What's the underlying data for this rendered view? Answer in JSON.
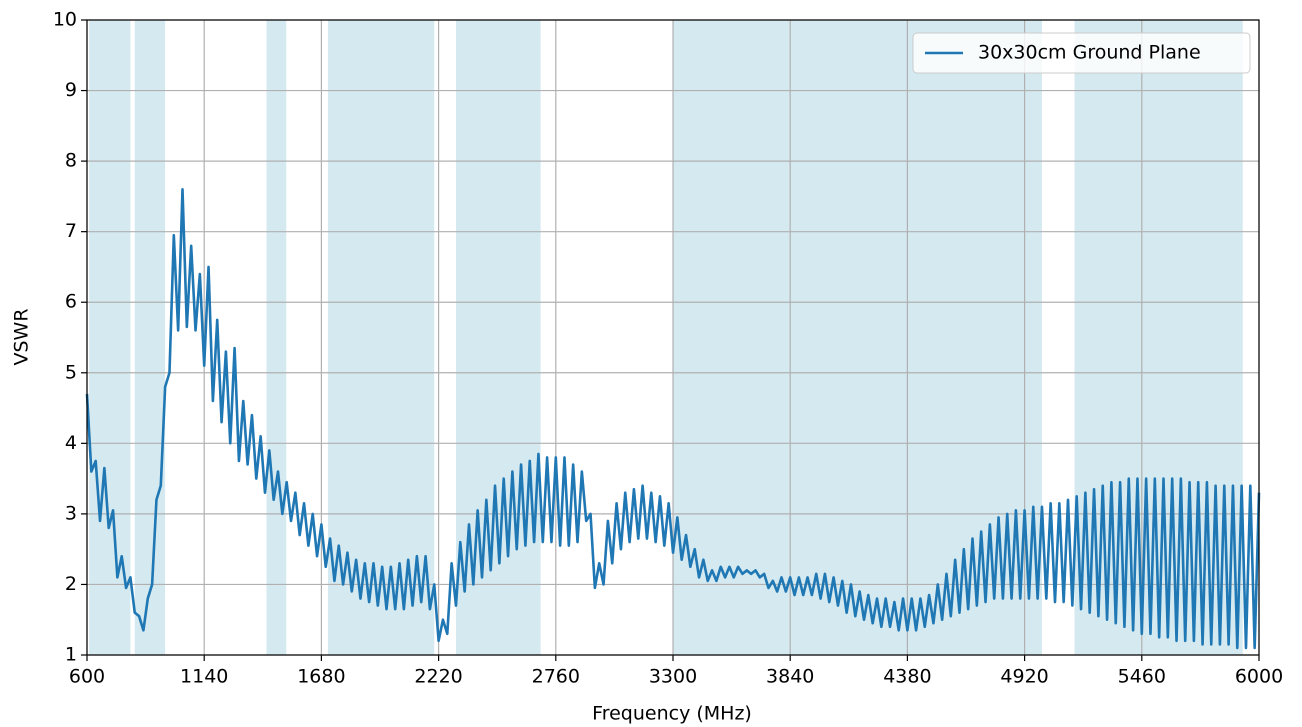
{
  "chart_data": {
    "type": "line",
    "xlabel": "Frequency (MHz)",
    "ylabel": "VSWR",
    "xlim": [
      600,
      6000
    ],
    "ylim": [
      1,
      10
    ],
    "xticks": [
      600,
      1140,
      1680,
      2220,
      2760,
      3300,
      3840,
      4380,
      4920,
      5460,
      6000
    ],
    "yticks": [
      1,
      2,
      3,
      4,
      5,
      6,
      7,
      8,
      9,
      10
    ],
    "grid": true,
    "legend": "upper right",
    "band_color": "#d4e9f0",
    "bands": [
      [
        610,
        800
      ],
      [
        820,
        960
      ],
      [
        1427,
        1518
      ],
      [
        1710,
        2200
      ],
      [
        2300,
        2690
      ],
      [
        3300,
        5000
      ],
      [
        5150,
        5925
      ]
    ],
    "x": [
      600,
      620,
      640,
      660,
      680,
      700,
      720,
      740,
      760,
      780,
      800,
      820,
      840,
      860,
      880,
      900,
      920,
      940,
      960,
      980,
      1000,
      1020,
      1040,
      1060,
      1080,
      1100,
      1120,
      1140,
      1160,
      1180,
      1200,
      1220,
      1240,
      1260,
      1280,
      1300,
      1320,
      1340,
      1360,
      1380,
      1400,
      1420,
      1440,
      1460,
      1480,
      1500,
      1520,
      1540,
      1560,
      1580,
      1600,
      1620,
      1640,
      1660,
      1680,
      1700,
      1720,
      1740,
      1760,
      1780,
      1800,
      1820,
      1840,
      1860,
      1880,
      1900,
      1920,
      1940,
      1960,
      1980,
      2000,
      2020,
      2040,
      2060,
      2080,
      2100,
      2120,
      2140,
      2160,
      2180,
      2200,
      2220,
      2240,
      2260,
      2280,
      2300,
      2320,
      2340,
      2360,
      2380,
      2400,
      2420,
      2440,
      2460,
      2480,
      2500,
      2520,
      2540,
      2560,
      2580,
      2600,
      2620,
      2640,
      2660,
      2680,
      2700,
      2720,
      2740,
      2760,
      2780,
      2800,
      2820,
      2840,
      2860,
      2880,
      2900,
      2920,
      2940,
      2960,
      2980,
      3000,
      3020,
      3040,
      3060,
      3080,
      3100,
      3120,
      3140,
      3160,
      3180,
      3200,
      3220,
      3240,
      3260,
      3280,
      3300,
      3320,
      3340,
      3360,
      3380,
      3400,
      3420,
      3440,
      3460,
      3480,
      3500,
      3520,
      3540,
      3560,
      3580,
      3600,
      3620,
      3640,
      3660,
      3680,
      3700,
      3720,
      3740,
      3760,
      3780,
      3800,
      3820,
      3840,
      3860,
      3880,
      3900,
      3920,
      3940,
      3960,
      3980,
      4000,
      4020,
      4040,
      4060,
      4080,
      4100,
      4120,
      4140,
      4160,
      4180,
      4200,
      4220,
      4240,
      4260,
      4280,
      4300,
      4320,
      4340,
      4360,
      4380,
      4400,
      4420,
      4440,
      4460,
      4480,
      4500,
      4520,
      4540,
      4560,
      4580,
      4600,
      4620,
      4640,
      4660,
      4680,
      4700,
      4720,
      4740,
      4760,
      4780,
      4800,
      4820,
      4840,
      4860,
      4880,
      4900,
      4920,
      4940,
      4960,
      4980,
      5000,
      5020,
      5040,
      5060,
      5080,
      5100,
      5120,
      5140,
      5160,
      5180,
      5200,
      5220,
      5240,
      5260,
      5280,
      5300,
      5320,
      5340,
      5360,
      5380,
      5400,
      5420,
      5440,
      5460,
      5480,
      5500,
      5520,
      5540,
      5560,
      5580,
      5600,
      5620,
      5640,
      5660,
      5680,
      5700,
      5720,
      5740,
      5760,
      5780,
      5800,
      5820,
      5840,
      5860,
      5880,
      5900,
      5920,
      5940,
      5960,
      5980,
      6000
    ],
    "series": [
      {
        "name": "30x30cm Ground Plane",
        "color": "#1f77b4",
        "values": [
          4.7,
          3.6,
          3.75,
          2.9,
          3.65,
          2.8,
          3.05,
          2.1,
          2.4,
          1.95,
          2.1,
          1.6,
          1.55,
          1.35,
          1.8,
          2.0,
          3.2,
          3.4,
          4.8,
          5.0,
          6.95,
          5.6,
          7.6,
          5.65,
          6.8,
          5.6,
          6.4,
          5.1,
          6.5,
          4.6,
          5.75,
          4.3,
          5.3,
          4.0,
          5.35,
          3.75,
          4.6,
          3.7,
          4.4,
          3.5,
          4.1,
          3.3,
          3.9,
          3.2,
          3.6,
          3.0,
          3.45,
          2.9,
          3.3,
          2.7,
          3.15,
          2.55,
          3.0,
          2.4,
          2.85,
          2.25,
          2.65,
          2.05,
          2.55,
          2.0,
          2.45,
          1.9,
          2.35,
          1.8,
          2.3,
          1.75,
          2.3,
          1.7,
          2.25,
          1.65,
          2.25,
          1.65,
          2.3,
          1.65,
          2.35,
          1.7,
          2.4,
          1.75,
          2.4,
          1.65,
          2.0,
          1.2,
          1.5,
          1.3,
          2.3,
          1.7,
          2.6,
          1.9,
          2.85,
          2.0,
          3.05,
          2.1,
          3.2,
          2.2,
          3.4,
          2.3,
          3.5,
          2.4,
          3.6,
          2.5,
          3.7,
          2.55,
          3.75,
          2.6,
          3.85,
          2.6,
          3.8,
          2.6,
          3.8,
          2.55,
          3.8,
          2.55,
          3.7,
          2.6,
          3.6,
          2.9,
          3.0,
          1.95,
          2.3,
          2.0,
          2.9,
          2.3,
          3.15,
          2.5,
          3.3,
          2.6,
          3.35,
          2.65,
          3.4,
          2.65,
          3.3,
          2.6,
          3.25,
          2.55,
          3.15,
          2.45,
          2.95,
          2.35,
          2.7,
          2.25,
          2.5,
          2.1,
          2.35,
          2.05,
          2.2,
          2.05,
          2.25,
          2.1,
          2.25,
          2.1,
          2.25,
          2.15,
          2.2,
          2.15,
          2.2,
          2.1,
          2.15,
          1.95,
          2.05,
          1.9,
          2.1,
          1.9,
          2.1,
          1.85,
          2.1,
          1.85,
          2.1,
          1.85,
          2.15,
          1.8,
          2.15,
          1.75,
          2.1,
          1.7,
          2.05,
          1.6,
          2.0,
          1.55,
          1.9,
          1.5,
          1.85,
          1.45,
          1.8,
          1.4,
          1.8,
          1.4,
          1.75,
          1.35,
          1.8,
          1.35,
          1.8,
          1.35,
          1.8,
          1.4,
          1.85,
          1.45,
          2.0,
          1.5,
          2.15,
          1.55,
          2.35,
          1.6,
          2.5,
          1.65,
          2.65,
          1.7,
          2.75,
          1.75,
          2.85,
          1.8,
          2.95,
          1.8,
          3.0,
          1.8,
          3.05,
          1.8,
          3.05,
          1.8,
          3.1,
          1.8,
          3.1,
          1.8,
          3.15,
          1.75,
          3.15,
          1.75,
          3.2,
          1.7,
          3.25,
          1.65,
          3.3,
          1.6,
          3.35,
          1.55,
          3.4,
          1.5,
          3.45,
          1.45,
          3.45,
          1.4,
          3.5,
          1.35,
          3.5,
          1.3,
          3.5,
          1.3,
          3.5,
          1.25,
          3.5,
          1.25,
          3.5,
          1.2,
          3.5,
          1.2,
          3.45,
          1.2,
          3.45,
          1.15,
          3.45,
          1.15,
          3.4,
          1.15,
          3.4,
          1.15,
          3.4,
          1.1,
          3.4,
          1.1,
          3.4,
          1.1,
          3.3
        ]
      }
    ]
  }
}
